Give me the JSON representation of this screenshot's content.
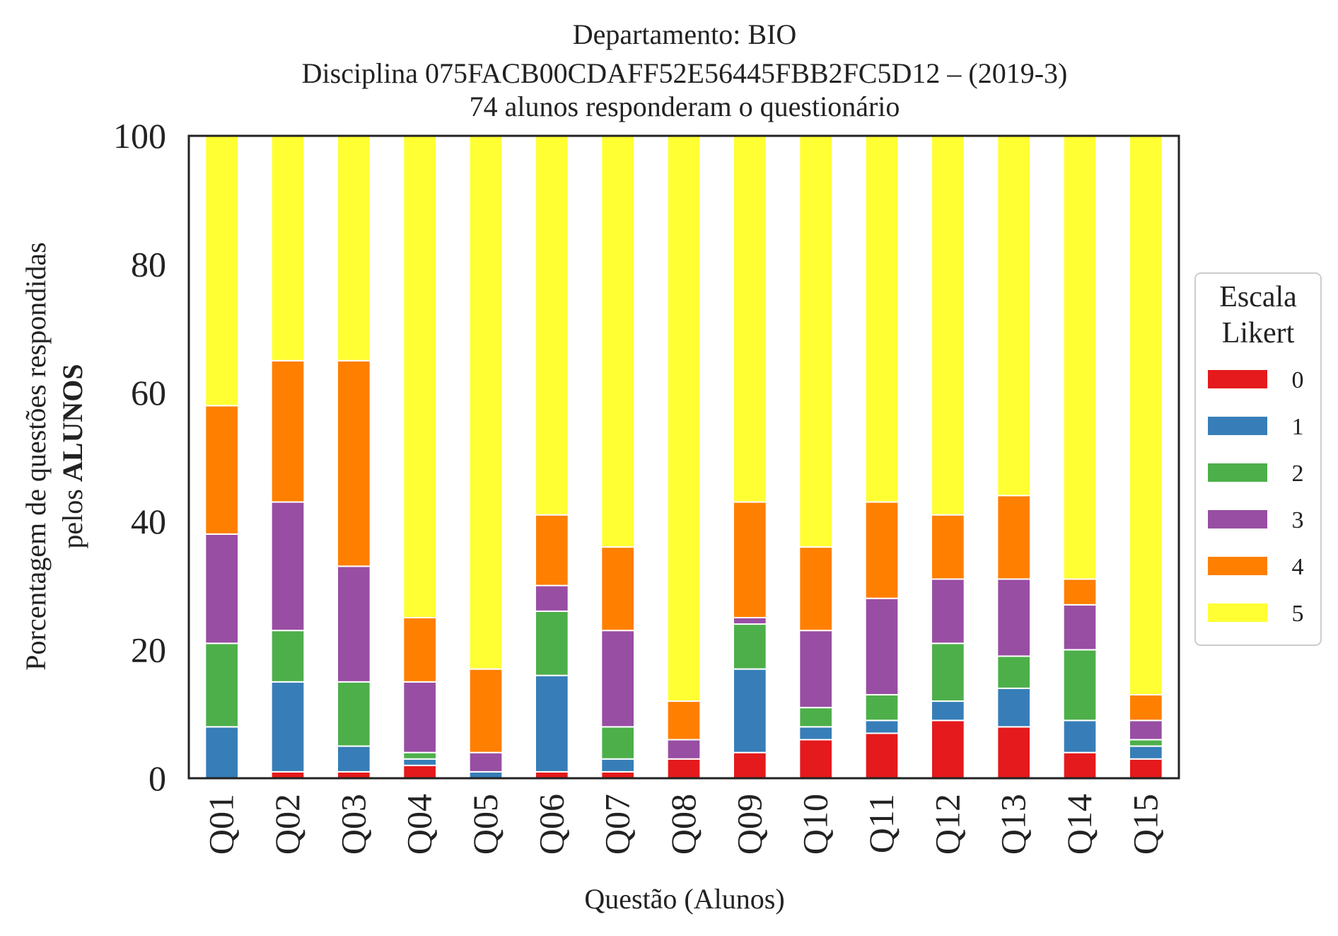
{
  "chart_data": {
    "type": "bar",
    "stacked": true,
    "title_lines": [
      "Departamento: BIO",
      "Disciplina 075FACB00CDAFF52E56445FBB2FC5D12 – (2019-3)",
      "74 alunos responderam o questionário"
    ],
    "xlabel": "Questão (Alunos)",
    "ylabel_line1": "Porcentagem de questões respondidas",
    "ylabel_line2_prefix": "pelos ",
    "ylabel_line2_bold": "ALUNOS",
    "ylim": [
      0,
      100
    ],
    "yticks": [
      0,
      20,
      40,
      60,
      80,
      100
    ],
    "grid": false,
    "legend": {
      "title_lines": [
        "Escala",
        "Likert"
      ],
      "placement": "right-outside"
    },
    "categories": [
      "Q01",
      "Q02",
      "Q03",
      "Q04",
      "Q05",
      "Q06",
      "Q07",
      "Q08",
      "Q09",
      "Q10",
      "Q11",
      "Q12",
      "Q13",
      "Q14",
      "Q15"
    ],
    "series": [
      {
        "name": "0",
        "color": "#e41a1c",
        "values": [
          0,
          1,
          1,
          2,
          0,
          1,
          1,
          3,
          4,
          6,
          7,
          9,
          8,
          4,
          3
        ]
      },
      {
        "name": "1",
        "color": "#377eb8",
        "values": [
          8,
          14,
          4,
          1,
          1,
          15,
          2,
          0,
          13,
          2,
          2,
          3,
          6,
          5,
          2
        ]
      },
      {
        "name": "2",
        "color": "#4daf4a",
        "values": [
          13,
          8,
          10,
          1,
          0,
          10,
          5,
          0,
          7,
          3,
          4,
          9,
          5,
          11,
          1
        ]
      },
      {
        "name": "3",
        "color": "#984ea3",
        "values": [
          17,
          20,
          18,
          11,
          3,
          4,
          15,
          3,
          1,
          12,
          15,
          10,
          12,
          7,
          3
        ]
      },
      {
        "name": "4",
        "color": "#ff7f00",
        "values": [
          20,
          22,
          32,
          10,
          13,
          11,
          13,
          6,
          18,
          13,
          15,
          10,
          13,
          4,
          4
        ]
      },
      {
        "name": "5",
        "color": "#ffff33",
        "values": [
          42,
          35,
          35,
          75,
          83,
          59,
          64,
          88,
          57,
          64,
          57,
          59,
          56,
          69,
          87
        ]
      }
    ]
  }
}
